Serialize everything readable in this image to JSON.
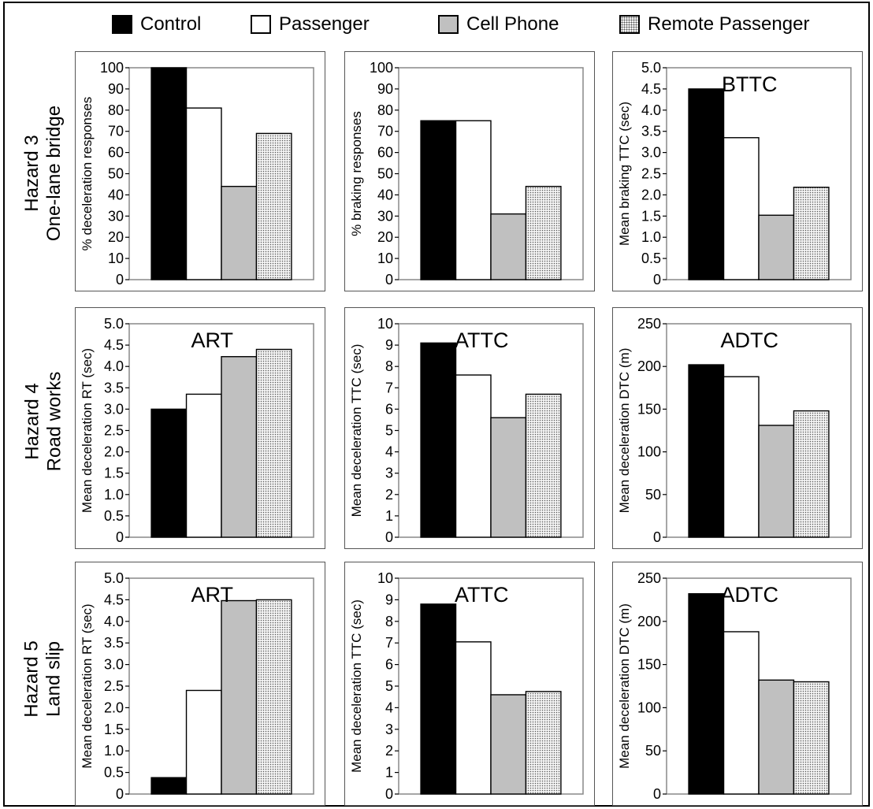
{
  "legend": [
    {
      "label": "Control",
      "fill": "#000000"
    },
    {
      "label": "Passenger",
      "fill": "#ffffff"
    },
    {
      "label": "Cell Phone",
      "fill": "#c0c0c0"
    },
    {
      "label": "Remote Passenger",
      "fill": "dots"
    }
  ],
  "rows": [
    {
      "line1": "Hazard 3",
      "line2": "One-lane bridge"
    },
    {
      "line1": "Hazard 4",
      "line2": "Road works"
    },
    {
      "line1": "Hazard 5",
      "line2": "Land slip"
    }
  ],
  "colors": {
    "control": "#000000",
    "passenger": "#ffffff",
    "cell_phone": "#c0c0c0",
    "remote_passenger": "#d8d8d8",
    "panel_border": "#555555"
  },
  "chart_data": [
    {
      "type": "bar",
      "row": "Hazard 3 One-lane bridge",
      "title": "",
      "ylabel": "% deceleration responses",
      "ylim": [
        0,
        100
      ],
      "ticks": [
        "0",
        "10",
        "20",
        "30",
        "40",
        "50",
        "60",
        "70",
        "80",
        "90",
        "100"
      ],
      "categories": [
        "Control",
        "Passenger",
        "Cell Phone",
        "Remote Passenger"
      ],
      "values": [
        100,
        81,
        44,
        69
      ]
    },
    {
      "type": "bar",
      "row": "Hazard 3 One-lane bridge",
      "title": "",
      "ylabel": "% braking responses",
      "ylim": [
        0,
        100
      ],
      "ticks": [
        "0",
        "10",
        "20",
        "30",
        "40",
        "50",
        "60",
        "70",
        "80",
        "90",
        "100"
      ],
      "categories": [
        "Control",
        "Passenger",
        "Cell Phone",
        "Remote Passenger"
      ],
      "values": [
        75,
        75,
        31,
        44
      ]
    },
    {
      "type": "bar",
      "row": "Hazard 3 One-lane bridge",
      "title": "BTTC",
      "ylabel": "Mean braking TTC (sec)",
      "ylim": [
        0,
        5
      ],
      "ticks": [
        "0",
        "0.5",
        "1.0",
        "1.5",
        "2.0",
        "2.5",
        "3.0",
        "3.5",
        "4.0",
        "4.5",
        "5.0"
      ],
      "categories": [
        "Control",
        "Passenger",
        "Cell Phone",
        "Remote Passenger"
      ],
      "values": [
        4.5,
        3.35,
        1.52,
        2.18
      ]
    },
    {
      "type": "bar",
      "row": "Hazard 4 Road works",
      "title": "ART",
      "ylabel": "Mean deceleration RT (sec)",
      "ylim": [
        0,
        5
      ],
      "ticks": [
        "0",
        "0.5",
        "1.0",
        "1.5",
        "2.0",
        "2.5",
        "3.0",
        "3.5",
        "4.0",
        "4.5",
        "5.0"
      ],
      "categories": [
        "Control",
        "Passenger",
        "Cell Phone",
        "Remote Passenger"
      ],
      "values": [
        3.0,
        3.35,
        4.23,
        4.4
      ]
    },
    {
      "type": "bar",
      "row": "Hazard 4 Road works",
      "title": "ATTC",
      "ylabel": "Mean deceleration TTC (sec)",
      "ylim": [
        0,
        10
      ],
      "ticks": [
        "0",
        "1",
        "2",
        "3",
        "4",
        "5",
        "6",
        "7",
        "8",
        "9",
        "10"
      ],
      "categories": [
        "Control",
        "Passenger",
        "Cell Phone",
        "Remote Passenger"
      ],
      "values": [
        9.1,
        7.6,
        5.6,
        6.7
      ]
    },
    {
      "type": "bar",
      "row": "Hazard 4 Road works",
      "title": "ADTC",
      "ylabel": "Mean deceleration DTC (m)",
      "ylim": [
        0,
        250
      ],
      "ticks": [
        "0",
        "50",
        "100",
        "150",
        "200",
        "250"
      ],
      "categories": [
        "Control",
        "Passenger",
        "Cell Phone",
        "Remote Passenger"
      ],
      "values": [
        202,
        188,
        131,
        148
      ]
    },
    {
      "type": "bar",
      "row": "Hazard 5 Land slip",
      "title": "ART",
      "ylabel": "Mean deceleration RT (sec)",
      "ylim": [
        0,
        5
      ],
      "ticks": [
        "0",
        "0.5",
        "1.0",
        "1.5",
        "2.0",
        "2.5",
        "3.0",
        "3.5",
        "4.0",
        "4.5",
        "5.0"
      ],
      "categories": [
        "Control",
        "Passenger",
        "Cell Phone",
        "Remote Passenger"
      ],
      "values": [
        0.38,
        2.4,
        4.48,
        4.5
      ]
    },
    {
      "type": "bar",
      "row": "Hazard 5 Land slip",
      "title": "ATTC",
      "ylabel": "Mean deceleration TTC (sec)",
      "ylim": [
        0,
        10
      ],
      "ticks": [
        "0",
        "1",
        "2",
        "3",
        "4",
        "5",
        "6",
        "7",
        "8",
        "9",
        "10"
      ],
      "categories": [
        "Control",
        "Passenger",
        "Cell Phone",
        "Remote Passenger"
      ],
      "values": [
        8.8,
        7.05,
        4.6,
        4.75
      ]
    },
    {
      "type": "bar",
      "row": "Hazard 5 Land slip",
      "title": "ADTC",
      "ylabel": "Mean deceleration DTC (m)",
      "ylim": [
        0,
        250
      ],
      "ticks": [
        "0",
        "50",
        "100",
        "150",
        "200",
        "250"
      ],
      "categories": [
        "Control",
        "Passenger",
        "Cell Phone",
        "Remote Passenger"
      ],
      "values": [
        232,
        188,
        132,
        130
      ]
    }
  ]
}
